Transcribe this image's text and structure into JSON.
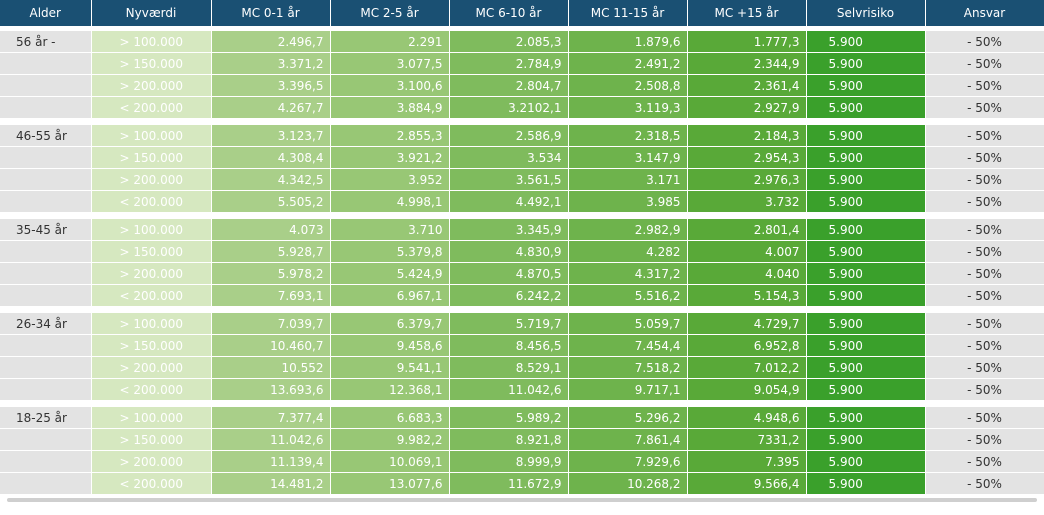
{
  "headers": [
    "Alder",
    "Nyværdi",
    "MC 0-1 år",
    "MC 2-5 år",
    "MC 6-10 år",
    "MC 11-15 år",
    "MC +15 år",
    "Selvrisiko",
    "Ansvar"
  ],
  "groups": [
    {
      "age": "56 år -",
      "rows": [
        [
          "> 100.000",
          "2.496,7",
          "2.291",
          "2.085,3",
          "1.879,6",
          "1.777,3",
          "5.900",
          "- 50%"
        ],
        [
          "> 150.000",
          "3.371,2",
          "3.077,5",
          "2.784,9",
          "2.491,2",
          "2.344,9",
          "5.900",
          "- 50%"
        ],
        [
          "> 200.000",
          "3.396,5",
          "3.100,6",
          "2.804,7",
          "2.508,8",
          "2.361,4",
          "5.900",
          "- 50%"
        ],
        [
          "< 200.000",
          "4.267,7",
          "3.884,9",
          "3.2102,1",
          "3.119,3",
          "2.927,9",
          "5.900",
          "- 50%"
        ]
      ]
    },
    {
      "age": "46-55 år",
      "rows": [
        [
          "> 100.000",
          "3.123,7",
          "2.855,3",
          "2.586,9",
          "2.318,5",
          "2.184,3",
          "5.900",
          "- 50%"
        ],
        [
          "> 150.000",
          "4.308,4",
          "3.921,2",
          "3.534",
          "3.147,9",
          "2.954,3",
          "5.900",
          "- 50%"
        ],
        [
          "> 200.000",
          "4.342,5",
          "3.952",
          "3.561,5",
          "3.171",
          "2.976,3",
          "5.900",
          "- 50%"
        ],
        [
          "< 200.000",
          "5.505,2",
          "4.998,1",
          "4.492,1",
          "3.985",
          "3.732",
          "5.900",
          "- 50%"
        ]
      ]
    },
    {
      "age": "35-45 år",
      "rows": [
        [
          "> 100.000",
          "4.073",
          "3.710",
          "3.345,9",
          "2.982,9",
          "2.801,4",
          "5.900",
          "- 50%"
        ],
        [
          "> 150.000",
          "5.928,7",
          "5.379,8",
          "4.830,9",
          "4.282",
          "4.007",
          "5.900",
          "- 50%"
        ],
        [
          "> 200.000",
          "5.978,2",
          "5.424,9",
          "4.870,5",
          "4.317,2",
          "4.040",
          "5.900",
          "- 50%"
        ],
        [
          "< 200.000",
          "7.693,1",
          "6.967,1",
          "6.242,2",
          "5.516,2",
          "5.154,3",
          "5.900",
          "- 50%"
        ]
      ]
    },
    {
      "age": "26-34 år",
      "rows": [
        [
          "> 100.000",
          "7.039,7",
          "6.379,7",
          "5.719,7",
          "5.059,7",
          "4.729,7",
          "5.900",
          "- 50%"
        ],
        [
          "> 150.000",
          "10.460,7",
          "9.458,6",
          "8.456,5",
          "7.454,4",
          "6.952,8",
          "5.900",
          "- 50%"
        ],
        [
          "> 200.000",
          "10.552",
          "9.541,1",
          "8.529,1",
          "7.518,2",
          "7.012,2",
          "5.900",
          "- 50%"
        ],
        [
          "< 200.000",
          "13.693,6",
          "12.368,1",
          "11.042,6",
          "9.717,1",
          "9.054,9",
          "5.900",
          "- 50%"
        ]
      ]
    },
    {
      "age": "18-25 år",
      "rows": [
        [
          "> 100.000",
          "7.377,4",
          "6.683,3",
          "5.989,2",
          "5.296,2",
          "4.948,6",
          "5.900",
          "- 50%"
        ],
        [
          "> 150.000",
          "11.042,6",
          "9.982,2",
          "8.921,8",
          "7.861,4",
          "7331,2",
          "5.900",
          "- 50%"
        ],
        [
          "> 200.000",
          "11.139,4",
          "10.069,1",
          "8.999,9",
          "7.929,6",
          "7.395",
          "5.900",
          "- 50%"
        ],
        [
          "< 200.000",
          "14.481,2",
          "13.077,6",
          "11.672,9",
          "10.268,2",
          "9.566,4",
          "5.900",
          "- 50%"
        ]
      ]
    }
  ]
}
